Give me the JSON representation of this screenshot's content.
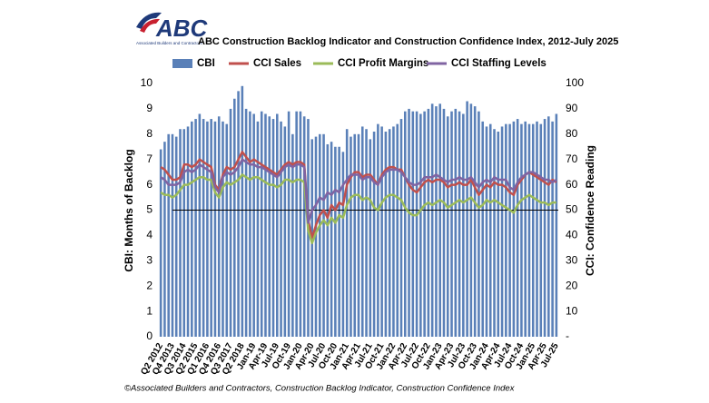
{
  "logo": {
    "text": "ABC",
    "subtitle": "Associated Builders and Contractors"
  },
  "chart_data": {
    "type": "bar_line",
    "title": "ABC Construction Backlog Indicator and Construction Confidence Index, 2012-July 2025",
    "y_label": "CBI: Months of Backlog",
    "y2_label": "CCI: Confidence Reading",
    "source": "©Associated Builders and Contractors, Construction Backlog Indicator, Construction Confidence Index",
    "ylim": [
      0,
      10
    ],
    "yticks": [
      0,
      1,
      2,
      3,
      4,
      5,
      6,
      7,
      8,
      9,
      10
    ],
    "y2lim": [
      0,
      100
    ],
    "y2ticks": [
      {
        "value": 0,
        "label": "-"
      },
      10,
      20,
      30,
      40,
      50,
      60,
      70,
      80,
      90,
      100
    ],
    "reference_lines": [
      {
        "axis": "y2",
        "value": 50
      }
    ],
    "categories": [
      "Q2 2012",
      null,
      null,
      "Q4 2013",
      null,
      null,
      "Q3 2014",
      null,
      null,
      "Q2 2015",
      null,
      null,
      "Q1 2016",
      null,
      null,
      "Q4 2016",
      null,
      null,
      "Q3 2017",
      null,
      null,
      "Q2 2018",
      null,
      null,
      "Jan-19",
      null,
      null,
      "Apr-19",
      null,
      null,
      "Jul-19",
      null,
      null,
      "Oct-19",
      null,
      null,
      "Jan-20",
      null,
      null,
      "Apr-20",
      null,
      null,
      "Jul-20",
      null,
      null,
      "Oct-20",
      null,
      null,
      "Jan-21",
      null,
      null,
      "Apr-21",
      null,
      null,
      "Jul-21",
      null,
      null,
      "Oct-21",
      null,
      null,
      "Jan-22",
      null,
      null,
      "Apr-22",
      null,
      null,
      "Jul-22",
      null,
      null,
      "Oct-22",
      null,
      null,
      "Jan-23",
      null,
      null,
      "Apr-23",
      null,
      null,
      "Jul-23",
      null,
      null,
      "Oct-23",
      null,
      null,
      "Jan-24",
      null,
      null,
      "Apr-24",
      null,
      null,
      "Jul-24",
      null,
      null,
      "Oct-24",
      null,
      null,
      "Jan-25",
      null,
      null,
      "Apr-25",
      null,
      null,
      "Jul-25"
    ],
    "series": [
      {
        "name": "CBI",
        "kind": "bar",
        "axis": "y",
        "color": "#5a80b8",
        "values": [
          7.4,
          7.7,
          8.0,
          8.0,
          7.9,
          8.2,
          8.2,
          8.3,
          8.5,
          8.6,
          8.8,
          8.6,
          8.5,
          8.6,
          8.5,
          8.7,
          8.5,
          8.4,
          9.0,
          9.4,
          9.7,
          9.9,
          9.0,
          8.9,
          8.8,
          8.5,
          8.9,
          8.8,
          8.7,
          8.6,
          8.8,
          8.5,
          8.3,
          8.9,
          8.0,
          8.9,
          8.9,
          8.7,
          8.6,
          7.8,
          7.9,
          8.0,
          8.0,
          7.6,
          7.7,
          7.5,
          7.5,
          7.3,
          8.2,
          7.9,
          8.0,
          8.0,
          8.3,
          8.2,
          7.8,
          8.1,
          8.4,
          8.3,
          8.1,
          8.2,
          8.3,
          8.4,
          8.6,
          8.9,
          9.0,
          8.9,
          8.9,
          8.8,
          8.9,
          9.0,
          9.2,
          9.1,
          9.2,
          9.0,
          8.7,
          8.9,
          9.0,
          8.9,
          8.8,
          9.3,
          9.2,
          9.1,
          8.9,
          8.5,
          8.3,
          8.4,
          8.2,
          8.1,
          8.3,
          8.4,
          8.4,
          8.5,
          8.6,
          8.4,
          8.5,
          8.4,
          8.4,
          8.5,
          8.4,
          8.6,
          8.7,
          8.5,
          8.8
        ]
      },
      {
        "name": "CCI Sales",
        "kind": "line",
        "axis": "y2",
        "color": "#c0504d",
        "values": [
          67,
          66,
          64,
          62,
          62,
          63,
          68,
          68,
          67,
          68,
          70,
          69,
          68,
          67,
          60,
          58,
          64,
          67,
          66,
          67,
          70,
          73,
          71,
          69,
          70,
          69,
          68,
          67,
          66,
          65,
          64,
          66,
          68,
          69,
          68,
          69,
          69,
          68,
          46,
          39,
          44,
          48,
          50,
          47,
          52,
          50,
          53,
          52,
          60,
          63,
          65,
          65,
          63,
          64,
          64,
          62,
          60,
          64,
          66,
          67,
          67,
          66,
          66,
          63,
          60,
          58,
          57,
          59,
          61,
          62,
          61,
          62,
          62,
          61,
          59,
          60,
          60,
          61,
          60,
          60,
          62,
          59,
          56,
          58,
          60,
          59,
          61,
          60,
          60,
          59,
          57,
          56,
          60,
          62,
          64,
          65,
          64,
          63,
          62,
          61,
          60,
          62,
          61
        ]
      },
      {
        "name": "CCI Profit Margins",
        "kind": "line",
        "axis": "y2",
        "color": "#9bbb59",
        "values": [
          57,
          56,
          56,
          55,
          56,
          58,
          60,
          60,
          61,
          62,
          63,
          63,
          62,
          62,
          57,
          55,
          59,
          61,
          60,
          61,
          62,
          64,
          63,
          62,
          63,
          63,
          62,
          61,
          60,
          60,
          59,
          60,
          62,
          62,
          61,
          62,
          62,
          61,
          42,
          37,
          41,
          44,
          46,
          44,
          47,
          45,
          48,
          47,
          52,
          55,
          56,
          56,
          54,
          55,
          54,
          51,
          50,
          53,
          55,
          56,
          56,
          55,
          54,
          51,
          49,
          48,
          48,
          50,
          52,
          53,
          52,
          53,
          54,
          53,
          51,
          52,
          53,
          54,
          53,
          54,
          55,
          53,
          51,
          52,
          54,
          53,
          54,
          53,
          52,
          51,
          50,
          49,
          52,
          54,
          55,
          56,
          55,
          54,
          53,
          53,
          52,
          53,
          53
        ]
      },
      {
        "name": "CCI Staffing Levels",
        "kind": "line",
        "axis": "y2",
        "color": "#8064a2",
        "values": [
          63,
          62,
          60,
          60,
          60,
          61,
          65,
          66,
          65,
          66,
          68,
          67,
          66,
          65,
          59,
          57,
          63,
          65,
          64,
          65,
          67,
          70,
          69,
          68,
          68,
          67,
          67,
          66,
          65,
          64,
          63,
          65,
          67,
          68,
          67,
          68,
          68,
          67,
          45,
          50,
          52,
          55,
          54,
          57,
          56,
          58,
          57,
          60,
          62,
          64,
          64,
          64,
          62,
          63,
          63,
          61,
          60,
          63,
          65,
          66,
          66,
          66,
          65,
          63,
          61,
          60,
          60,
          61,
          63,
          63,
          63,
          64,
          63,
          62,
          61,
          62,
          62,
          63,
          62,
          62,
          63,
          61,
          59,
          61,
          62,
          61,
          63,
          62,
          62,
          62,
          59,
          58,
          61,
          63,
          64,
          65,
          65,
          64,
          63,
          62,
          62,
          61,
          62
        ]
      }
    ]
  }
}
